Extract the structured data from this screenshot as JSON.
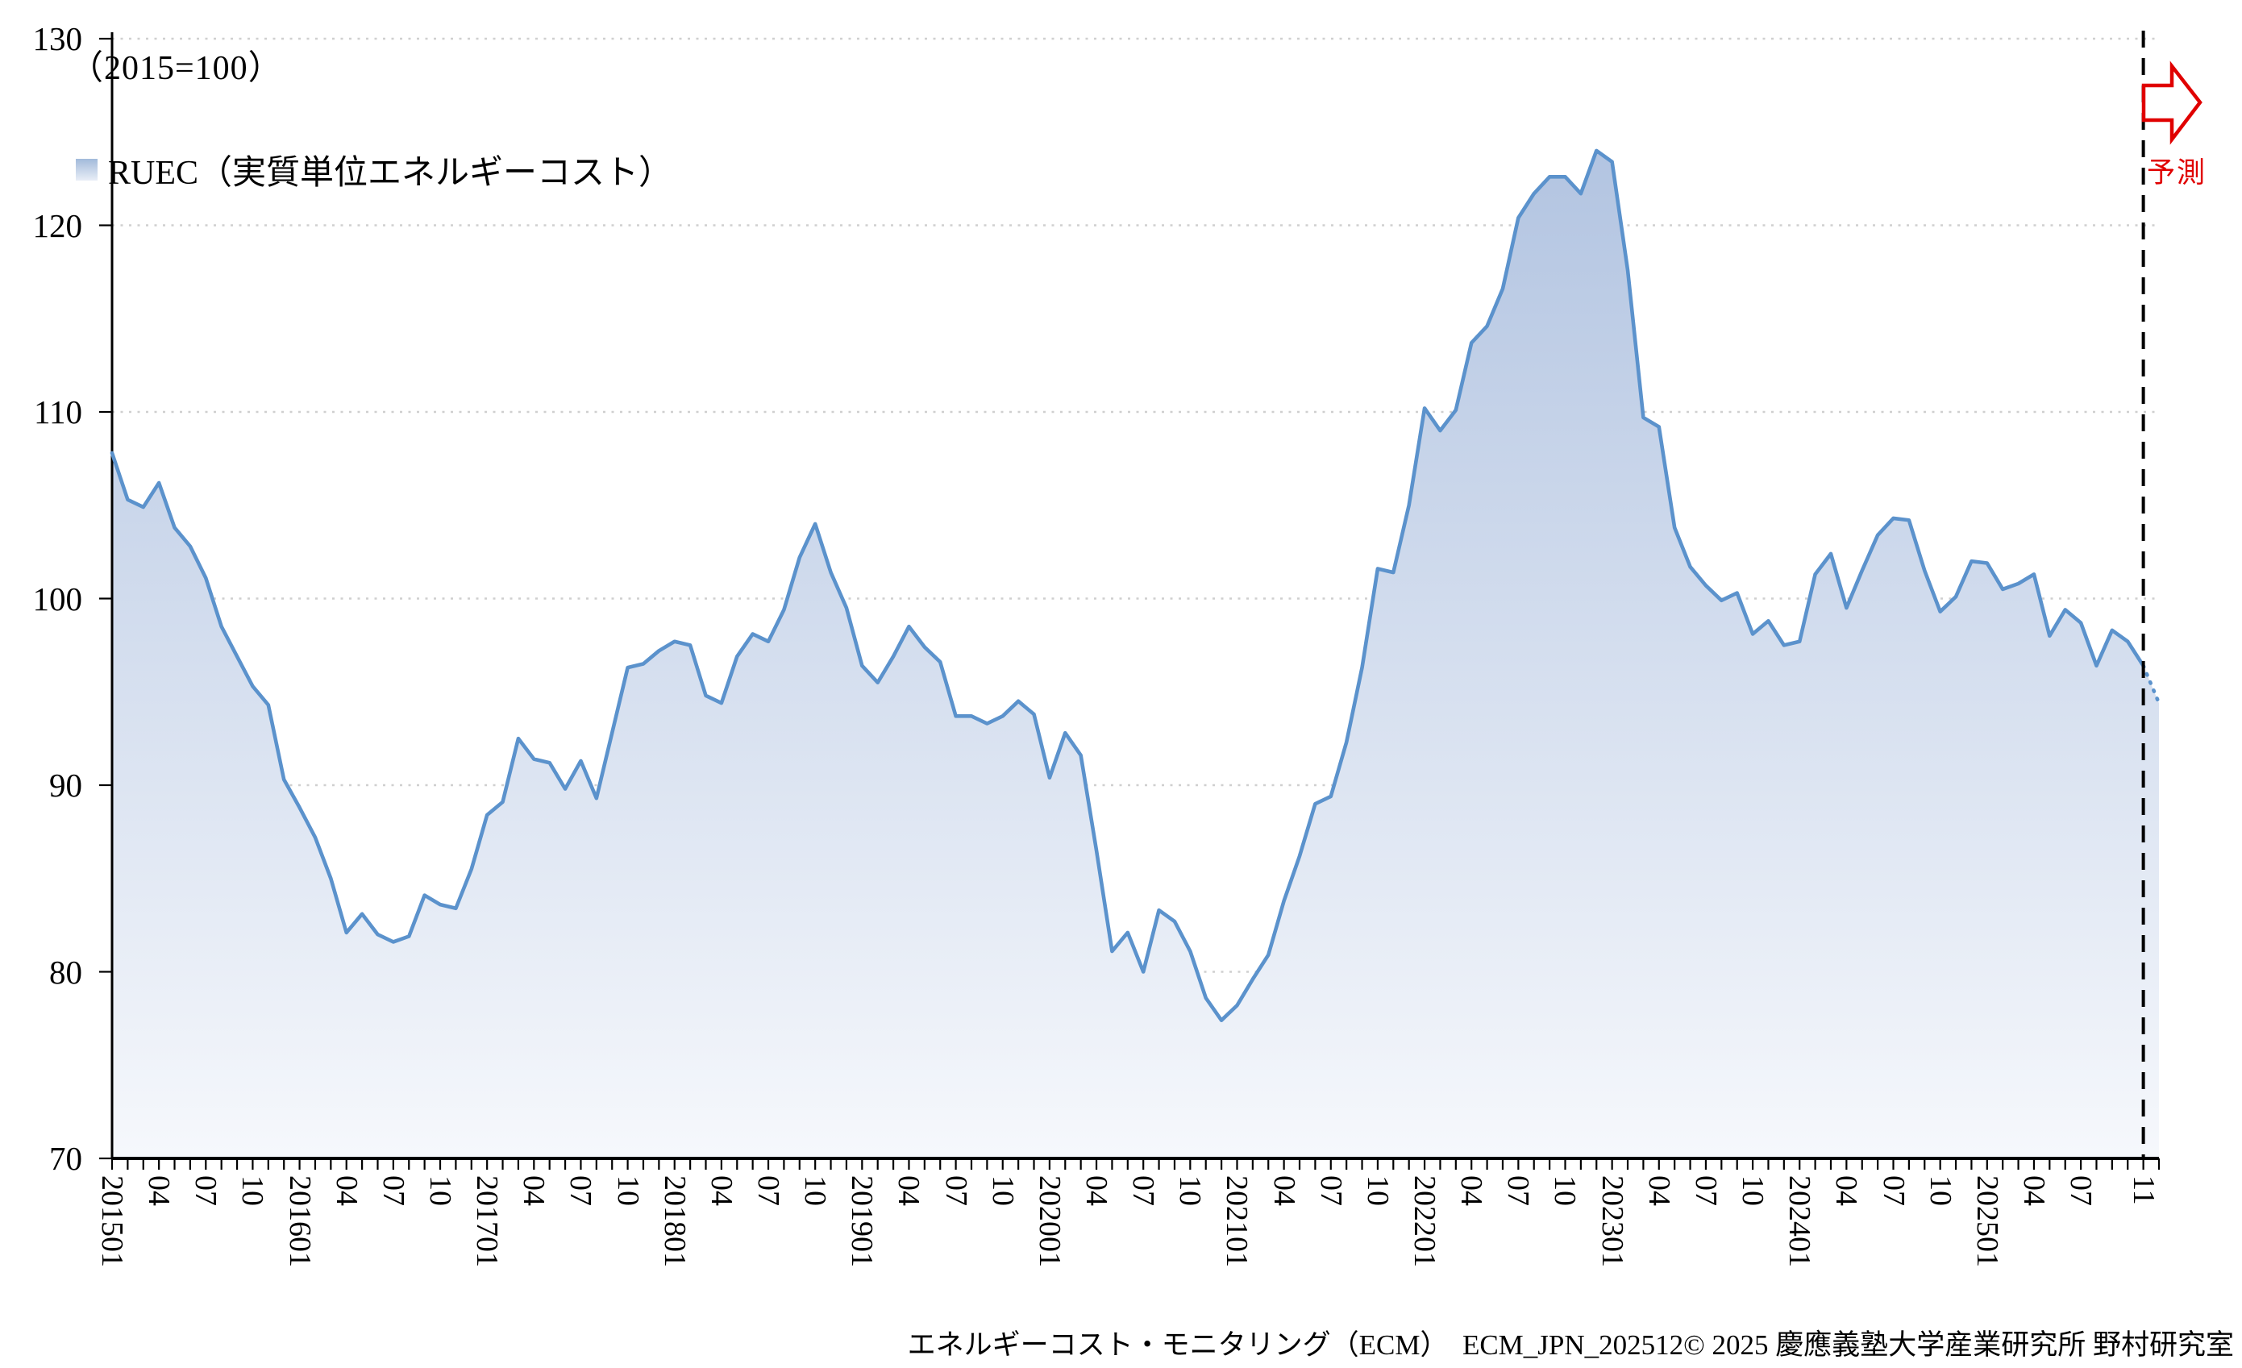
{
  "header": {
    "note": "（2015=100）",
    "legend_label": "RUEC（実質単位エネルギーコスト）"
  },
  "forecast": {
    "label": "予測"
  },
  "footer": {
    "caption": "エネルギーコスト・モニタリング（ECM）　ECM_JPN_202512© 2025 慶應義塾大学産業研究所 野村研究室"
  },
  "colors": {
    "line": "#5b92cc",
    "fill_top": "#b2c4e1",
    "fill_bottom": "#f6f8fc",
    "grid": "#cfcfcf",
    "forecast_red": "#e00000",
    "axis": "#000000"
  },
  "chart_data": {
    "type": "area",
    "title": "RUEC（実質単位エネルギーコスト）",
    "note": "（2015=100）",
    "legend": [
      "RUEC（実質単位エネルギーコスト）"
    ],
    "legend_position": "top-left",
    "grid": "horizontal-dotted",
    "ylim": [
      70,
      130
    ],
    "y_ticks": [
      70,
      80,
      90,
      100,
      110,
      120,
      130
    ],
    "forecast_boundary_index": 130,
    "forecast_boundary_label": "202511",
    "x": [
      "201501",
      "201502",
      "201503",
      "201504",
      "201505",
      "201506",
      "201507",
      "201508",
      "201509",
      "201510",
      "201511",
      "201512",
      "201601",
      "201602",
      "201603",
      "201604",
      "201605",
      "201606",
      "201607",
      "201608",
      "201609",
      "201610",
      "201611",
      "201612",
      "201701",
      "201702",
      "201703",
      "201704",
      "201705",
      "201706",
      "201707",
      "201708",
      "201709",
      "201710",
      "201711",
      "201712",
      "201801",
      "201802",
      "201803",
      "201804",
      "201805",
      "201806",
      "201807",
      "201808",
      "201809",
      "201810",
      "201811",
      "201812",
      "201901",
      "201902",
      "201903",
      "201904",
      "201905",
      "201906",
      "201907",
      "201908",
      "201909",
      "201910",
      "201911",
      "201912",
      "202001",
      "202002",
      "202003",
      "202004",
      "202005",
      "202006",
      "202007",
      "202008",
      "202009",
      "202010",
      "202011",
      "202012",
      "202101",
      "202102",
      "202103",
      "202104",
      "202105",
      "202106",
      "202107",
      "202108",
      "202109",
      "202110",
      "202111",
      "202112",
      "202201",
      "202202",
      "202203",
      "202204",
      "202205",
      "202206",
      "202207",
      "202208",
      "202209",
      "202210",
      "202211",
      "202212",
      "202301",
      "202302",
      "202303",
      "202304",
      "202305",
      "202306",
      "202307",
      "202308",
      "202309",
      "202310",
      "202311",
      "202312",
      "202401",
      "202402",
      "202403",
      "202404",
      "202405",
      "202406",
      "202407",
      "202408",
      "202409",
      "202410",
      "202411",
      "202412",
      "202501",
      "202502",
      "202503",
      "202504",
      "202505",
      "202506",
      "202507",
      "202508",
      "202509",
      "202510",
      "202511",
      "202512"
    ],
    "values": [
      107.8,
      105.3,
      104.9,
      106.2,
      103.8,
      102.8,
      101.1,
      98.5,
      96.9,
      95.3,
      94.3,
      90.3,
      88.8,
      87.2,
      85.0,
      82.1,
      83.1,
      82.0,
      81.6,
      81.9,
      84.1,
      83.6,
      83.4,
      85.5,
      88.4,
      89.1,
      92.5,
      91.4,
      91.2,
      89.8,
      91.3,
      89.3,
      92.8,
      96.3,
      96.5,
      97.2,
      97.7,
      97.5,
      94.8,
      94.4,
      96.9,
      98.1,
      97.7,
      99.4,
      102.2,
      104.0,
      101.4,
      99.5,
      96.4,
      95.5,
      96.9,
      98.5,
      97.4,
      96.6,
      93.7,
      93.7,
      93.3,
      93.7,
      94.5,
      93.8,
      90.4,
      92.8,
      91.6,
      86.5,
      81.1,
      82.1,
      80.0,
      83.3,
      82.7,
      81.1,
      78.6,
      77.4,
      78.2,
      79.6,
      80.9,
      83.8,
      86.2,
      89.0,
      89.4,
      92.3,
      96.3,
      101.6,
      101.4,
      105.0,
      110.2,
      109.0,
      110.1,
      113.7,
      114.6,
      116.6,
      120.4,
      121.7,
      122.6,
      122.6,
      121.7,
      124.0,
      123.4,
      117.6,
      109.7,
      109.2,
      103.8,
      101.7,
      100.7,
      99.9,
      100.3,
      98.1,
      98.8,
      97.5,
      97.7,
      101.3,
      102.4,
      99.5,
      101.5,
      103.4,
      104.3,
      104.2,
      101.5,
      99.3,
      100.1,
      102.0,
      101.9,
      100.5,
      100.8,
      101.3,
      98.0,
      99.4,
      98.7,
      96.4,
      98.3,
      97.7,
      96.4,
      94.4
    ],
    "x_tick_labels": [
      {
        "i": 0,
        "t": "201501"
      },
      {
        "i": 3,
        "t": "04"
      },
      {
        "i": 6,
        "t": "07"
      },
      {
        "i": 9,
        "t": "10"
      },
      {
        "i": 12,
        "t": "201601"
      },
      {
        "i": 15,
        "t": "04"
      },
      {
        "i": 18,
        "t": "07"
      },
      {
        "i": 21,
        "t": "10"
      },
      {
        "i": 24,
        "t": "201701"
      },
      {
        "i": 27,
        "t": "04"
      },
      {
        "i": 30,
        "t": "07"
      },
      {
        "i": 33,
        "t": "10"
      },
      {
        "i": 36,
        "t": "201801"
      },
      {
        "i": 39,
        "t": "04"
      },
      {
        "i": 42,
        "t": "07"
      },
      {
        "i": 45,
        "t": "10"
      },
      {
        "i": 48,
        "t": "201901"
      },
      {
        "i": 51,
        "t": "04"
      },
      {
        "i": 54,
        "t": "07"
      },
      {
        "i": 57,
        "t": "10"
      },
      {
        "i": 60,
        "t": "202001"
      },
      {
        "i": 63,
        "t": "04"
      },
      {
        "i": 66,
        "t": "07"
      },
      {
        "i": 69,
        "t": "10"
      },
      {
        "i": 72,
        "t": "202101"
      },
      {
        "i": 75,
        "t": "04"
      },
      {
        "i": 78,
        "t": "07"
      },
      {
        "i": 81,
        "t": "10"
      },
      {
        "i": 84,
        "t": "202201"
      },
      {
        "i": 87,
        "t": "04"
      },
      {
        "i": 90,
        "t": "07"
      },
      {
        "i": 93,
        "t": "10"
      },
      {
        "i": 96,
        "t": "202301"
      },
      {
        "i": 99,
        "t": "04"
      },
      {
        "i": 102,
        "t": "07"
      },
      {
        "i": 105,
        "t": "10"
      },
      {
        "i": 108,
        "t": "202401"
      },
      {
        "i": 111,
        "t": "04"
      },
      {
        "i": 114,
        "t": "07"
      },
      {
        "i": 117,
        "t": "10"
      },
      {
        "i": 120,
        "t": "202501"
      },
      {
        "i": 123,
        "t": "04"
      },
      {
        "i": 126,
        "t": "07"
      },
      {
        "i": 130,
        "t": "11"
      }
    ]
  }
}
